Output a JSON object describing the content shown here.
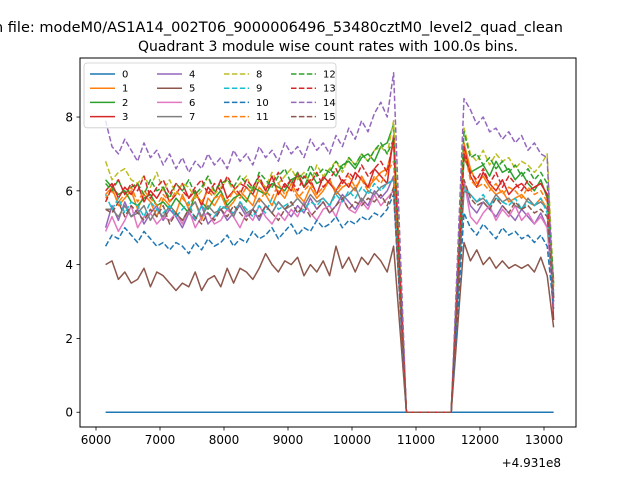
{
  "figure": {
    "suptitle": "n file: modeM0/AS1A14_002T06_9000006496_53480cztM0_level2_quad_clean",
    "title": "Quadrant 3 module wise count rates with 100.0s bins.",
    "offset_label": "+4.931e8"
  },
  "chart_data": {
    "type": "line",
    "title": "Quadrant 3 module wise count rates with 100.0s bins.",
    "xlabel": "",
    "ylabel": "",
    "x_offset": 493100000,
    "xlim": [
      5750,
      13500
    ],
    "ylim": [
      -0.4,
      9.6
    ],
    "xticks": [
      6000,
      7000,
      8000,
      9000,
      10000,
      11000,
      12000,
      13000
    ],
    "yticks": [
      0,
      2,
      4,
      6,
      8
    ],
    "grid": false,
    "legend": {
      "placement": "upper-left",
      "columns": 4
    },
    "x": [
      6150,
      6250,
      6350,
      6450,
      6550,
      6650,
      6750,
      6850,
      6950,
      7050,
      7150,
      7250,
      7350,
      7450,
      7550,
      7650,
      7750,
      7850,
      7950,
      8050,
      8150,
      8250,
      8350,
      8450,
      8550,
      8650,
      8750,
      8850,
      8950,
      9050,
      9150,
      9250,
      9350,
      9450,
      9550,
      9650,
      9750,
      9850,
      9950,
      10050,
      10150,
      10250,
      10350,
      10450,
      10550,
      10650,
      10850,
      11550,
      11750,
      11850,
      11950,
      12050,
      12150,
      12250,
      12350,
      12450,
      12550,
      12650,
      12750,
      12850,
      12950,
      13050,
      13150
    ],
    "series": [
      {
        "name": "0",
        "color": "#1f77b4",
        "dash": false,
        "values": [
          0,
          0,
          0,
          0,
          0,
          0,
          0,
          0,
          0,
          0,
          0,
          0,
          0,
          0,
          0,
          0,
          0,
          0,
          0,
          0,
          0,
          0,
          0,
          0,
          0,
          0,
          0,
          0,
          0,
          0,
          0,
          0,
          0,
          0,
          0,
          0,
          0,
          0,
          0,
          0,
          0,
          0,
          0,
          0,
          0,
          0,
          0,
          0,
          0,
          0,
          0,
          0,
          0,
          0,
          0,
          0,
          0,
          0,
          0,
          0,
          0,
          0,
          0
        ]
      },
      {
        "name": "1",
        "color": "#ff7f0e",
        "dash": false,
        "values": [
          5.9,
          6.1,
          5.6,
          5.8,
          6.0,
          5.5,
          5.9,
          5.7,
          5.3,
          5.8,
          5.6,
          5.4,
          5.9,
          5.5,
          5.7,
          5.2,
          5.8,
          5.6,
          5.9,
          5.5,
          5.7,
          6.0,
          5.8,
          5.6,
          6.1,
          5.9,
          5.6,
          6.0,
          5.8,
          6.2,
          5.9,
          5.7,
          6.1,
          5.8,
          6.0,
          6.3,
          5.9,
          6.1,
          6.2,
          6.0,
          6.4,
          6.1,
          6.3,
          6.5,
          6.6,
          7.3,
          0,
          0,
          7.3,
          6.6,
          6.2,
          6.4,
          6.1,
          5.9,
          6.0,
          5.7,
          5.8,
          5.9,
          5.7,
          5.6,
          5.8,
          5.5,
          3.6
        ]
      },
      {
        "name": "2",
        "color": "#2ca02c",
        "dash": false,
        "values": [
          6.3,
          6.1,
          5.9,
          6.0,
          5.7,
          5.6,
          5.8,
          5.9,
          5.6,
          5.7,
          5.5,
          5.8,
          5.6,
          5.4,
          5.9,
          5.7,
          5.5,
          5.8,
          6.0,
          5.6,
          5.8,
          5.9,
          5.7,
          6.1,
          6.0,
          5.9,
          6.2,
          6.1,
          6.0,
          6.3,
          6.4,
          6.1,
          6.5,
          6.2,
          6.3,
          6.6,
          6.4,
          6.7,
          6.8,
          6.6,
          6.9,
          7.0,
          6.8,
          7.2,
          7.3,
          7.8,
          0,
          0,
          6.9,
          6.5,
          6.6,
          6.7,
          6.4,
          6.8,
          6.5,
          6.6,
          6.3,
          6.5,
          6.2,
          6.0,
          6.3,
          5.8,
          3.1
        ]
      },
      {
        "name": "3",
        "color": "#d62728",
        "dash": false,
        "values": [
          6.0,
          6.2,
          5.8,
          6.1,
          5.9,
          6.2,
          5.7,
          6.0,
          5.8,
          6.1,
          5.7,
          5.9,
          6.2,
          5.8,
          6.0,
          5.6,
          6.1,
          5.9,
          6.3,
          5.8,
          6.0,
          6.2,
          6.1,
          5.9,
          6.3,
          6.0,
          6.4,
          5.9,
          6.2,
          6.0,
          6.5,
          6.1,
          6.3,
          5.9,
          6.4,
          6.2,
          6.0,
          6.3,
          6.1,
          6.5,
          6.3,
          6.1,
          6.6,
          6.4,
          6.2,
          7.5,
          0,
          0,
          7.2,
          6.4,
          6.1,
          6.5,
          6.2,
          6.0,
          6.3,
          5.9,
          6.1,
          6.2,
          6.0,
          6.1,
          6.2,
          5.9,
          2.5
        ]
      },
      {
        "name": "4",
        "color": "#9467bd",
        "dash": false,
        "values": [
          5.0,
          5.6,
          5.2,
          5.7,
          5.3,
          5.5,
          5.1,
          5.4,
          5.6,
          5.2,
          5.5,
          5.3,
          5.0,
          5.4,
          5.2,
          5.6,
          5.1,
          5.3,
          5.5,
          5.2,
          5.4,
          5.6,
          5.3,
          5.5,
          5.2,
          5.6,
          5.4,
          5.7,
          5.5,
          5.3,
          5.6,
          5.4,
          5.8,
          5.5,
          5.7,
          5.4,
          5.6,
          5.9,
          5.7,
          5.5,
          5.8,
          5.6,
          6.0,
          5.8,
          6.0,
          6.4,
          0,
          0,
          6.2,
          5.6,
          5.4,
          5.7,
          5.5,
          5.3,
          5.6,
          5.4,
          5.2,
          5.5,
          5.3,
          5.1,
          5.4,
          5.0,
          3.0
        ]
      },
      {
        "name": "5",
        "color": "#8c564b",
        "dash": false,
        "values": [
          4.0,
          4.1,
          3.6,
          3.8,
          3.5,
          3.6,
          3.9,
          3.4,
          3.8,
          3.7,
          3.5,
          3.3,
          3.5,
          3.4,
          3.8,
          3.3,
          3.6,
          3.7,
          3.4,
          3.9,
          3.5,
          3.9,
          3.8,
          3.6,
          3.9,
          4.3,
          4.0,
          3.8,
          4.1,
          4.0,
          4.2,
          3.7,
          4.0,
          3.8,
          4.1,
          3.7,
          4.5,
          3.9,
          4.2,
          3.8,
          4.2,
          4.0,
          4.3,
          4.1,
          3.8,
          4.5,
          0,
          0,
          4.6,
          4.1,
          4.4,
          4.0,
          4.2,
          3.9,
          4.1,
          3.9,
          4.0,
          3.9,
          4.0,
          3.8,
          4.2,
          3.7,
          2.3
        ]
      },
      {
        "name": "6",
        "color": "#e377c2",
        "dash": false,
        "values": [
          4.9,
          5.3,
          4.9,
          5.2,
          5.6,
          5.0,
          5.3,
          5.4,
          5.1,
          5.3,
          5.2,
          5.4,
          5.1,
          5.5,
          5.0,
          5.3,
          5.4,
          5.1,
          5.2,
          5.5,
          5.3,
          5.0,
          5.4,
          5.2,
          5.6,
          5.3,
          5.1,
          5.4,
          5.2,
          5.5,
          5.3,
          5.7,
          5.4,
          5.2,
          5.5,
          5.6,
          5.3,
          5.8,
          5.5,
          5.4,
          5.7,
          5.5,
          5.9,
          5.6,
          5.8,
          6.0,
          0,
          0,
          6.3,
          5.3,
          5.1,
          5.4,
          5.6,
          5.2,
          5.5,
          5.3,
          5.6,
          5.2,
          5.4,
          5.1,
          5.3,
          5.0,
          3.1
        ]
      },
      {
        "name": "7",
        "color": "#7f7f7f",
        "dash": false,
        "values": [
          5.5,
          5.5,
          5.3,
          5.6,
          5.3,
          5.4,
          5.6,
          5.2,
          5.5,
          5.3,
          5.6,
          5.4,
          5.2,
          5.5,
          5.7,
          5.3,
          5.6,
          5.4,
          5.5,
          5.6,
          5.3,
          5.7,
          5.4,
          5.5,
          5.8,
          5.6,
          5.4,
          5.7,
          5.5,
          5.6,
          5.8,
          5.6,
          5.9,
          5.7,
          5.8,
          5.6,
          6.0,
          5.8,
          5.9,
          6.1,
          5.7,
          6.0,
          5.9,
          6.1,
          6.2,
          6.3,
          0,
          0,
          6.0,
          5.9,
          5.7,
          5.8,
          5.6,
          5.9,
          5.7,
          5.8,
          5.6,
          5.5,
          5.8,
          5.6,
          5.7,
          5.5,
          3.2
        ]
      },
      {
        "name": "8",
        "color": "#bcbd22",
        "dash": true,
        "values": [
          6.8,
          6.3,
          6.5,
          6.6,
          6.3,
          6.2,
          6.4,
          6.1,
          6.5,
          6.0,
          6.3,
          5.9,
          6.2,
          6.1,
          5.8,
          6.0,
          6.4,
          5.9,
          6.1,
          6.3,
          6.0,
          6.2,
          6.4,
          6.0,
          6.3,
          6.1,
          6.5,
          6.2,
          6.4,
          6.6,
          6.3,
          6.5,
          6.2,
          6.7,
          6.4,
          6.6,
          6.8,
          6.5,
          6.9,
          6.7,
          7.0,
          6.8,
          7.1,
          7.2,
          7.0,
          7.9,
          0,
          0,
          7.7,
          7.0,
          6.8,
          7.1,
          6.7,
          7.0,
          6.8,
          6.9,
          6.6,
          6.8,
          6.7,
          6.5,
          6.7,
          7.0,
          3.4
        ]
      },
      {
        "name": "9",
        "color": "#17becf",
        "dash": true,
        "values": [
          5.9,
          5.5,
          5.8,
          5.4,
          5.7,
          5.6,
          5.3,
          5.7,
          5.5,
          5.4,
          5.6,
          5.3,
          5.5,
          5.7,
          5.2,
          5.6,
          5.4,
          5.3,
          5.6,
          5.5,
          5.4,
          5.7,
          5.5,
          5.3,
          5.6,
          5.4,
          5.8,
          5.5,
          5.6,
          5.7,
          5.4,
          5.5,
          5.7,
          5.6,
          5.8,
          5.6,
          5.9,
          5.7,
          6.0,
          5.8,
          6.1,
          5.9,
          6.2,
          6.0,
          6.2,
          6.3,
          0,
          0,
          6.1,
          5.9,
          5.7,
          5.9,
          5.6,
          5.8,
          5.7,
          5.6,
          5.8,
          5.5,
          5.7,
          5.6,
          5.8,
          5.4,
          3.3
        ]
      },
      {
        "name": "10",
        "color": "#1f77b4",
        "dash": true,
        "values": [
          4.5,
          4.8,
          4.7,
          5.0,
          4.8,
          4.6,
          4.9,
          4.7,
          4.5,
          4.6,
          4.4,
          4.6,
          4.5,
          4.3,
          4.6,
          4.4,
          4.7,
          4.5,
          4.6,
          4.8,
          4.5,
          4.7,
          4.6,
          4.9,
          4.7,
          4.8,
          5.0,
          4.7,
          4.9,
          5.1,
          4.8,
          5.0,
          4.9,
          5.2,
          5.0,
          5.1,
          5.3,
          5.0,
          5.2,
          5.1,
          5.3,
          5.2,
          5.4,
          5.3,
          5.5,
          5.9,
          0,
          0,
          5.4,
          5.0,
          4.8,
          5.1,
          4.9,
          4.7,
          5.0,
          4.8,
          4.9,
          4.7,
          4.8,
          4.6,
          4.8,
          4.5,
          2.8
        ]
      },
      {
        "name": "11",
        "color": "#ff7f0e",
        "dash": true,
        "values": [
          5.8,
          6.0,
          5.7,
          5.9,
          6.1,
          5.7,
          6.0,
          5.8,
          5.6,
          5.9,
          5.7,
          6.0,
          5.8,
          5.6,
          5.9,
          5.7,
          6.0,
          5.8,
          5.9,
          5.7,
          6.0,
          5.8,
          6.1,
          5.9,
          5.7,
          6.0,
          5.8,
          6.2,
          5.9,
          6.1,
          5.8,
          6.0,
          6.2,
          5.9,
          6.1,
          6.3,
          6.0,
          6.2,
          6.4,
          6.1,
          6.3,
          6.0,
          6.4,
          6.2,
          6.5,
          6.8,
          0,
          0,
          7.1,
          6.3,
          6.1,
          6.2,
          6.0,
          6.2,
          5.9,
          6.1,
          6.0,
          5.8,
          6.1,
          5.9,
          6.0,
          5.7,
          3.4
        ]
      },
      {
        "name": "12",
        "color": "#2ca02c",
        "dash": true,
        "values": [
          6.2,
          6.0,
          6.3,
          5.9,
          6.1,
          6.2,
          5.9,
          6.3,
          6.0,
          6.1,
          5.8,
          6.2,
          6.0,
          6.3,
          5.9,
          6.1,
          6.4,
          6.0,
          6.2,
          6.3,
          6.1,
          6.4,
          6.2,
          6.0,
          6.5,
          6.3,
          6.1,
          6.4,
          6.6,
          6.2,
          6.5,
          6.3,
          6.7,
          6.4,
          6.6,
          6.5,
          6.8,
          6.6,
          6.9,
          6.7,
          7.0,
          6.8,
          7.1,
          7.3,
          7.0,
          7.4,
          0,
          0,
          7.6,
          6.9,
          7.0,
          6.7,
          6.9,
          6.6,
          6.8,
          6.5,
          6.7,
          6.4,
          6.6,
          6.3,
          6.5,
          6.2,
          3.5
        ]
      },
      {
        "name": "13",
        "color": "#d62728",
        "dash": true,
        "values": [
          5.7,
          6.1,
          6.3,
          5.9,
          6.2,
          6.0,
          6.4,
          5.8,
          6.1,
          6.3,
          5.9,
          6.2,
          6.0,
          5.8,
          6.1,
          6.3,
          5.9,
          6.2,
          6.0,
          6.4,
          6.1,
          5.9,
          6.3,
          6.1,
          6.4,
          6.0,
          6.2,
          6.5,
          6.1,
          6.3,
          6.0,
          6.4,
          6.2,
          6.5,
          6.1,
          6.3,
          6.6,
          6.2,
          6.5,
          6.3,
          6.7,
          6.4,
          6.6,
          6.8,
          6.5,
          7.4,
          0,
          0,
          7.0,
          6.5,
          6.3,
          6.6,
          6.2,
          6.5,
          6.1,
          6.4,
          6.2,
          6.0,
          6.3,
          6.1,
          6.2,
          5.9,
          3.0
        ]
      },
      {
        "name": "14",
        "color": "#9467bd",
        "dash": true,
        "values": [
          7.9,
          7.2,
          7.0,
          7.4,
          7.1,
          6.8,
          7.3,
          6.9,
          7.1,
          6.7,
          7.0,
          6.6,
          6.9,
          6.5,
          6.8,
          6.6,
          7.0,
          6.7,
          6.9,
          6.6,
          7.1,
          6.8,
          7.0,
          6.7,
          7.2,
          6.9,
          7.1,
          6.8,
          7.3,
          7.0,
          7.2,
          6.9,
          7.4,
          7.1,
          7.3,
          7.0,
          7.5,
          7.2,
          7.7,
          7.4,
          7.9,
          7.6,
          8.1,
          8.4,
          8.0,
          9.2,
          0,
          0,
          8.5,
          8.2,
          7.8,
          8.0,
          7.6,
          7.7,
          7.4,
          7.6,
          7.3,
          7.5,
          7.1,
          7.3,
          7.0,
          6.9,
          2.8
        ]
      },
      {
        "name": "15",
        "color": "#8c564b",
        "dash": true,
        "values": [
          5.5,
          5.4,
          5.7,
          5.3,
          5.6,
          5.4,
          5.2,
          5.5,
          5.3,
          5.6,
          5.1,
          5.4,
          5.2,
          5.5,
          5.3,
          5.1,
          5.4,
          5.2,
          5.5,
          5.3,
          5.6,
          5.4,
          5.2,
          5.5,
          5.3,
          5.6,
          5.4,
          5.2,
          5.5,
          5.7,
          5.4,
          5.6,
          5.3,
          5.5,
          5.7,
          5.4,
          5.6,
          5.8,
          5.5,
          5.7,
          5.6,
          5.8,
          5.7,
          5.9,
          5.6,
          6.1,
          0,
          0,
          6.3,
          5.8,
          5.6,
          5.7,
          5.5,
          5.8,
          5.6,
          5.4,
          5.7,
          5.5,
          5.6,
          5.4,
          5.5,
          5.3,
          3.1
        ]
      }
    ]
  }
}
